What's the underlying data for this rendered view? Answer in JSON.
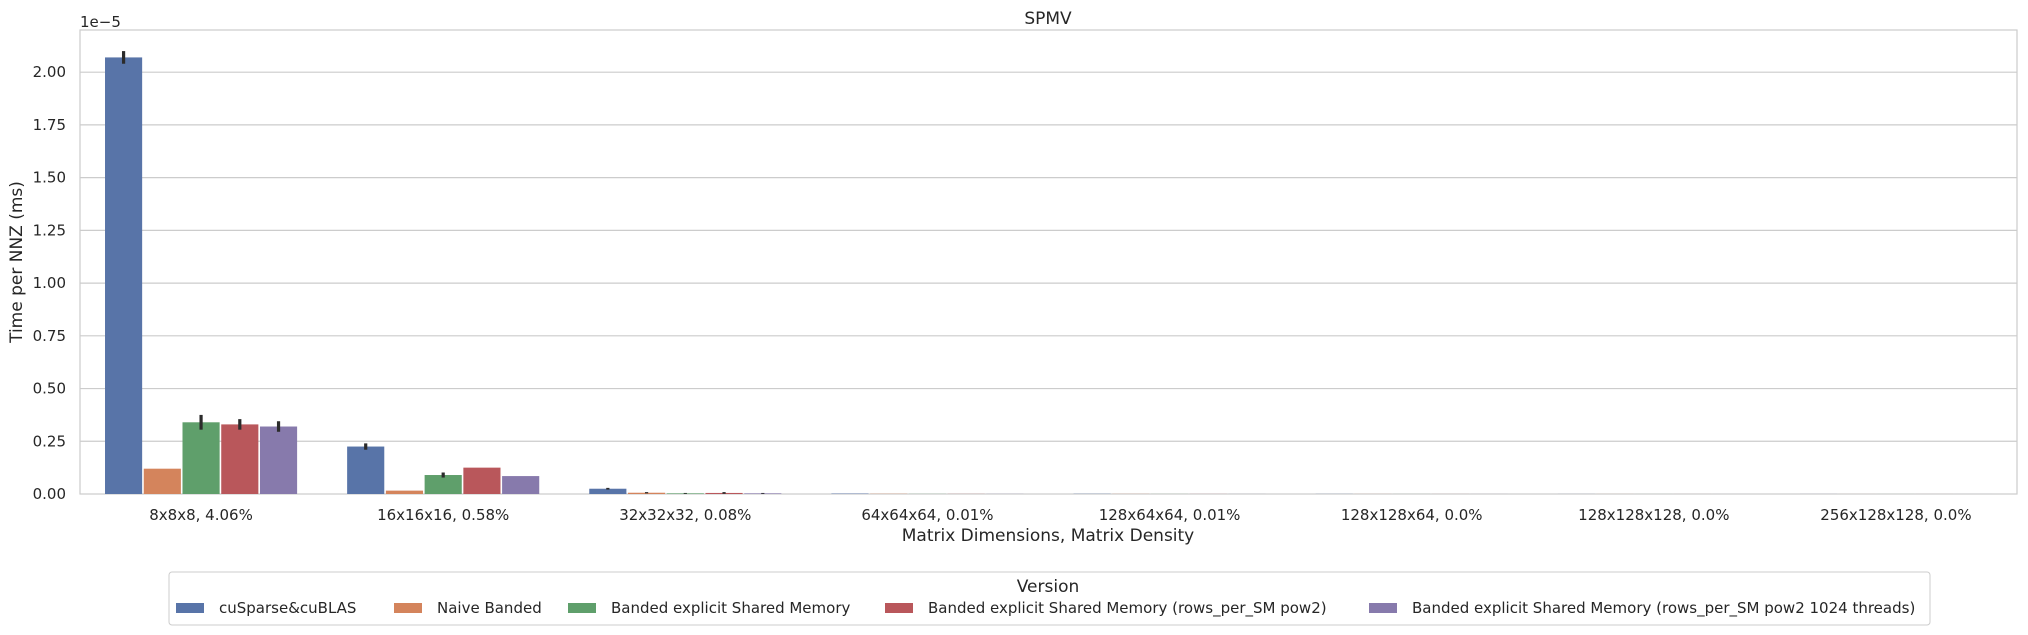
{
  "chart_data": {
    "type": "bar",
    "title": "SPMV",
    "xlabel": "Matrix Dimensions, Matrix Density",
    "ylabel": "Time per NNZ (ms)",
    "y_offset_label": "1e−5",
    "ylim": [
      0,
      2.2
    ],
    "yticks": [
      "0.00",
      "0.25",
      "0.50",
      "0.75",
      "1.00",
      "1.25",
      "1.50",
      "1.75",
      "2.00"
    ],
    "grid": true,
    "legend_title": "Version",
    "legend_position": "bottom-center",
    "categories": [
      "8x8x8, 4.06%",
      "16x16x16, 0.58%",
      "32x32x32, 0.08%",
      "64x64x64, 0.01%",
      "128x64x64, 0.01%",
      "128x128x64, 0.0%",
      "128x128x128, 0.0%",
      "256x128x128, 0.0%"
    ],
    "series": [
      {
        "name": "cuSparse&cuBLAS",
        "color": "#5874a8",
        "values": [
          2.07,
          0.225,
          0.025,
          0.002,
          0.001,
          0.0005,
          0.0003,
          0.0002
        ],
        "error": [
          0.03,
          0.015,
          0.004,
          0,
          0,
          0,
          0,
          0
        ]
      },
      {
        "name": "Naive Banded",
        "color": "#d4845c",
        "values": [
          0.12,
          0.016,
          0.006,
          0.001,
          0.0005,
          0.0003,
          0.0002,
          0.0001
        ],
        "error": [
          0,
          0,
          0.003,
          0,
          0,
          0,
          0,
          0
        ]
      },
      {
        "name": "Banded explicit Shared Memory",
        "color": "#5f9f6b",
        "values": [
          0.34,
          0.09,
          0.003,
          0.0005,
          0.0003,
          0.0002,
          0.0001,
          0.0001
        ],
        "error": [
          0.035,
          0.012,
          0.002,
          0,
          0,
          0,
          0,
          0
        ]
      },
      {
        "name": "Banded explicit Shared Memory (rows_per_SM pow2)",
        "color": "#b9575b",
        "values": [
          0.33,
          0.125,
          0.005,
          0.0005,
          0.0003,
          0.0002,
          0.0001,
          0.0001
        ],
        "error": [
          0.025,
          0,
          0.004,
          0,
          0,
          0,
          0,
          0
        ]
      },
      {
        "name": "Banded explicit Shared Memory (rows_per_SM pow2 1024 threads)",
        "color": "#877aac",
        "values": [
          0.32,
          0.085,
          0.003,
          0.0005,
          0.0003,
          0.0002,
          0.0001,
          0.0001
        ],
        "error": [
          0.025,
          0,
          0.002,
          0,
          0,
          0,
          0,
          0
        ]
      }
    ]
  }
}
